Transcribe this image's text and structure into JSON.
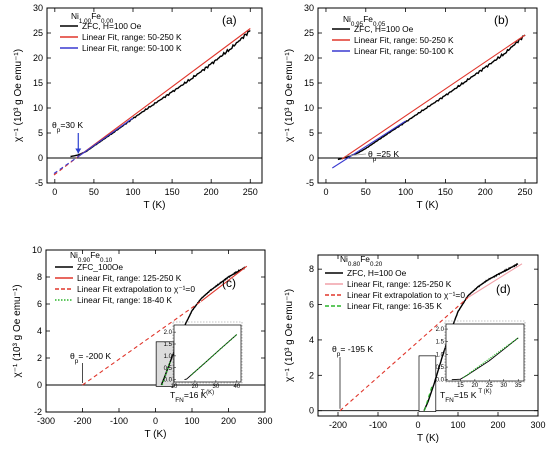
{
  "chart_data": [
    {
      "id": "a",
      "type": "line",
      "panel_label": "(a)",
      "sample": {
        "base": "Ni",
        "sub1": "1.00",
        "mid": "Fe",
        "sub2": "0.00"
      },
      "xlabel": "T (K)",
      "ylabel": "χ⁻¹ (10³ g Oe emu⁻¹)",
      "xlim": [
        -10,
        265
      ],
      "ylim": [
        -5,
        30
      ],
      "xticks": [
        0,
        50,
        100,
        150,
        200,
        250
      ],
      "yticks": [
        -5,
        0,
        5,
        10,
        15,
        20,
        25,
        30
      ],
      "legend": [
        "ZFC, H=100 Oe",
        "Linear Fit, range: 50-250 K",
        "Linear Fit, range: 50-100 K"
      ],
      "annotations": [
        {
          "text": "θ",
          "sub": "p",
          "rest": "=30 K"
        }
      ],
      "series": [
        {
          "name": "ZFC, H=100 Oe",
          "style": "data",
          "color": "#000000",
          "noise": 0.35,
          "points": [
            [
              20,
              0.3
            ],
            [
              30,
              0.6
            ],
            [
              40,
              1.3
            ],
            [
              50,
              2.4
            ],
            [
              75,
              5.1
            ],
            [
              100,
              7.9
            ],
            [
              125,
              10.6
            ],
            [
              150,
              13.2
            ],
            [
              175,
              15.9
            ],
            [
              200,
              18.8
            ],
            [
              225,
              21.9
            ],
            [
              250,
              25.5
            ]
          ]
        },
        {
          "name": "Linear Fit, range: 50-250 K",
          "style": "solid",
          "color": "#e0362c",
          "points": [
            [
              30,
              0.3
            ],
            [
              250,
              25.9
            ]
          ]
        },
        {
          "name": "Linear Fit, range: 50-100 K",
          "style": "solid",
          "color": "#3a3ad0",
          "points": [
            [
              30,
              0.3
            ],
            [
              100,
              8.0
            ]
          ]
        },
        {
          "name": "",
          "style": "dashed",
          "color": "#e0362c",
          "points": [
            [
              -1,
              -3.4
            ],
            [
              30,
              0.3
            ]
          ]
        },
        {
          "name": "",
          "style": "dashed",
          "color": "#3a3ad0",
          "points": [
            [
              -1,
              -3.1
            ],
            [
              30,
              0.3
            ]
          ]
        }
      ]
    },
    {
      "id": "b",
      "type": "line",
      "panel_label": "(b)",
      "sample": {
        "base": "Ni",
        "sub1": "0.95",
        "mid": "Fe",
        "sub2": "0.05"
      },
      "xlabel": "T (K)",
      "ylabel": "χ⁻¹ (10³ g Oe emu⁻¹)",
      "xlim": [
        -10,
        265
      ],
      "ylim": [
        -5,
        30
      ],
      "xticks": [
        0,
        50,
        100,
        150,
        200,
        250
      ],
      "yticks": [
        -5,
        0,
        5,
        10,
        15,
        20,
        25,
        30
      ],
      "legend": [
        "ZFC, H=100 Oe",
        "Linear Fit, range: 50-250 K",
        "Linear Fit, range: 50-100 K"
      ],
      "annotations": [
        {
          "text": "θ",
          "sub": "p",
          "rest": "=25 K"
        }
      ],
      "series": [
        {
          "name": "ZFC, H=100 Oe",
          "style": "data",
          "color": "#000000",
          "noise": 0.3,
          "points": [
            [
              15,
              -0.3
            ],
            [
              25,
              0.1
            ],
            [
              40,
              1.0
            ],
            [
              50,
              1.9
            ],
            [
              75,
              4.6
            ],
            [
              100,
              7.2
            ],
            [
              125,
              9.9
            ],
            [
              150,
              12.5
            ],
            [
              175,
              15.3
            ],
            [
              200,
              18.1
            ],
            [
              225,
              21.0
            ],
            [
              250,
              24.6
            ]
          ]
        },
        {
          "name": "Linear Fit, range: 50-250 K",
          "style": "solid",
          "color": "#e0362c",
          "points": [
            [
              20,
              -0.2
            ],
            [
              250,
              24.6
            ]
          ]
        },
        {
          "name": "Linear Fit, range: 50-100 K",
          "style": "solid",
          "color": "#3a3ad0",
          "points": [
            [
              8,
              -2.0
            ],
            [
              100,
              7.4
            ]
          ]
        }
      ]
    },
    {
      "id": "c",
      "type": "line",
      "panel_label": "(c)",
      "sample": {
        "base": "Ni",
        "sub1": "0.90",
        "mid": "Fe",
        "sub2": "0.10"
      },
      "xlabel": "T (K)",
      "ylabel": "χ⁻¹ (10³ g Oe emu⁻¹)",
      "xlim": [
        -300,
        300
      ],
      "ylim": [
        -2,
        10
      ],
      "xticks": [
        -300,
        -200,
        -100,
        0,
        100,
        200,
        300
      ],
      "yticks": [
        -2,
        0,
        2,
        4,
        6,
        8,
        10
      ],
      "legend": [
        "ZFC_100Oe",
        "Linear Fit, range: 125-250 K",
        "Linear Fit extrapolation to χ⁻¹=0",
        "Linear Fit, range: 18-40 K"
      ],
      "annotations": [
        {
          "text": "θ",
          "sub": "p",
          "rest": "= -200 K"
        },
        {
          "text": "T",
          "sub": "FN",
          "rest": "=16 K"
        }
      ],
      "inset": {
        "xlim": [
          10,
          42
        ],
        "ylim": [
          -0.1,
          2.3
        ],
        "xticks": [
          10,
          20,
          30,
          40
        ],
        "yticks": [
          0.0,
          0.5,
          1.0,
          1.5,
          2.0
        ],
        "xlabel": "T (K)",
        "series": [
          {
            "color": "#000000",
            "points": [
              [
                15,
                0.0
              ],
              [
                16,
                0.02
              ],
              [
                18,
                0.18
              ],
              [
                25,
                0.72
              ],
              [
                32,
                1.28
              ],
              [
                40,
                1.9
              ]
            ]
          },
          {
            "color": "#2ab52a",
            "dotted": true,
            "points": [
              [
                18,
                0.18
              ],
              [
                40,
                1.9
              ]
            ]
          }
        ]
      },
      "series": [
        {
          "name": "ZFC_100Oe",
          "style": "data",
          "color": "#000000",
          "noise": 0.05,
          "points": [
            [
              16,
              0.0
            ],
            [
              25,
              0.6
            ],
            [
              40,
              1.7
            ],
            [
              60,
              3.1
            ],
            [
              80,
              4.4
            ],
            [
              100,
              5.5
            ],
            [
              125,
              6.4
            ],
            [
              150,
              7.0
            ],
            [
              175,
              7.5
            ],
            [
              200,
              8.0
            ],
            [
              225,
              8.4
            ],
            [
              245,
              8.7
            ]
          ]
        },
        {
          "name": "Linear Fit, range: 125-250 K",
          "style": "solid",
          "color": "#e0362c",
          "points": [
            [
              125,
              6.2
            ],
            [
              250,
              8.8
            ]
          ]
        },
        {
          "name": "Linear Fit extrapolation to χ⁻¹=0",
          "style": "dashed",
          "color": "#e0362c",
          "points": [
            [
              -200,
              0.0
            ],
            [
              125,
              6.2
            ]
          ]
        },
        {
          "name": "Linear Fit, range: 18-40 K",
          "style": "dotted",
          "color": "#2ab52a",
          "points": [
            [
              18,
              0.0
            ],
            [
              40,
              1.7
            ]
          ]
        }
      ]
    },
    {
      "id": "d",
      "type": "line",
      "panel_label": "(d)",
      "sample": {
        "base": "Ni",
        "sub1": "0.80",
        "mid": "Fe",
        "sub2": "0.20"
      },
      "xlabel": "T (K)",
      "ylabel": "χ⁻¹ (10³ g Oe emu⁻¹)",
      "xlim": [
        -250,
        300
      ],
      "ylim": [
        -0.3,
        8.8
      ],
      "xticks": [
        -200,
        -100,
        0,
        100,
        200,
        300
      ],
      "yticks": [
        0,
        2,
        4,
        6,
        8
      ],
      "legend": [
        "ZFC, H=100 Oe",
        "Linear Fit, range: 125-250 K",
        "Linear Fit extrapolation to χ⁻¹=0",
        "Linear Fit, range: 16-35 K"
      ],
      "annotations": [
        {
          "text": "θ",
          "sub": "p",
          "rest": "= -195 K"
        },
        {
          "text": "T",
          "sub": "FN",
          "rest": "=15 K"
        }
      ],
      "inset": {
        "xlim": [
          10,
          37
        ],
        "ylim": [
          -0.05,
          2.2
        ],
        "xticks": [
          15,
          20,
          25,
          30,
          35
        ],
        "yticks": [
          0.0,
          0.5,
          1.0,
          1.5,
          2.0
        ],
        "xlabel": "T (K)",
        "series": [
          {
            "color": "#000000",
            "points": [
              [
                12,
                0.0
              ],
              [
                15,
                0.02
              ],
              [
                17,
                0.15
              ],
              [
                25,
                0.75
              ],
              [
                30,
                1.2
              ],
              [
                35,
                1.65
              ]
            ]
          },
          {
            "color": "#2ab52a",
            "dotted": true,
            "points": [
              [
                16,
                0.08
              ],
              [
                35,
                1.65
              ]
            ]
          }
        ]
      },
      "series": [
        {
          "name": "ZFC, H=100 Oe",
          "style": "data",
          "color": "#000000",
          "noise": 0.04,
          "points": [
            [
              15,
              0.0
            ],
            [
              25,
              0.5
            ],
            [
              40,
              1.5
            ],
            [
              60,
              3.0
            ],
            [
              80,
              4.4
            ],
            [
              100,
              5.6
            ],
            [
              125,
              6.5
            ],
            [
              150,
              7.0
            ],
            [
              175,
              7.4
            ],
            [
              200,
              7.7
            ],
            [
              225,
              8.0
            ],
            [
              250,
              8.3
            ]
          ]
        },
        {
          "name": "Linear Fit, range: 125-250 K",
          "style": "solid",
          "color": "#f0a0a8",
          "points": [
            [
              125,
              6.4
            ],
            [
              260,
              8.3
            ]
          ]
        },
        {
          "name": "Linear Fit extrapolation to χ⁻¹=0",
          "style": "dashed",
          "color": "#e0362c",
          "points": [
            [
              -195,
              0.0
            ],
            [
              125,
              6.4
            ]
          ]
        },
        {
          "name": "Linear Fit, range: 16-35 K",
          "style": "dashed",
          "color": "#2ab52a",
          "points": [
            [
              16,
              0.0
            ],
            [
              35,
              1.4
            ]
          ]
        }
      ]
    }
  ]
}
